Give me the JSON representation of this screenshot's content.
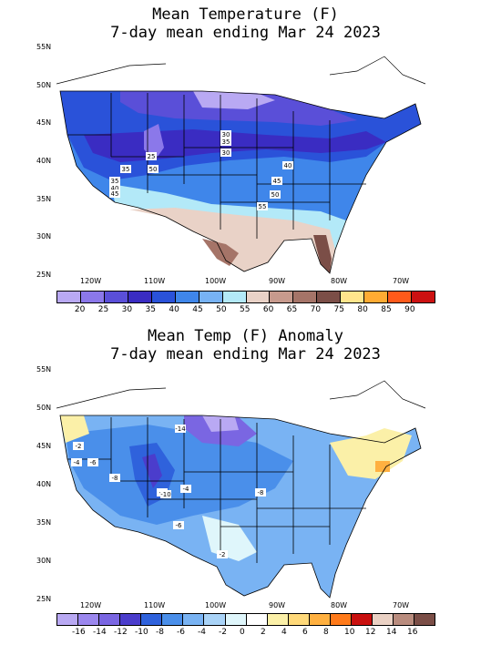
{
  "top": {
    "title_line1": "Mean Temperature (F)",
    "title_line2": "7-day mean ending Mar 24 2023",
    "lat_labels": [
      "55N",
      "50N",
      "45N",
      "40N",
      "35N",
      "30N",
      "25N"
    ],
    "lon_labels": [
      "120W",
      "110W",
      "100W",
      "90W",
      "80W",
      "70W"
    ],
    "contour_labels": [
      "25",
      "30",
      "35",
      "30",
      "35",
      "35",
      "40",
      "45",
      "40",
      "45",
      "50",
      "55",
      "50"
    ],
    "scale_labels": [
      "20",
      "25",
      "30",
      "35",
      "40",
      "45",
      "50",
      "55",
      "60",
      "65",
      "70",
      "75",
      "80",
      "85",
      "90"
    ],
    "scale_colors": [
      "#b9a9f3",
      "#8b78ea",
      "#5a4fd8",
      "#3a2cc2",
      "#2a52d9",
      "#3f86ea",
      "#77b2f4",
      "#b3e9f8",
      "#e9d2c7",
      "#c79a8d",
      "#a57468",
      "#7b4e47",
      "#ffe58c",
      "#ffab33",
      "#ff5a1a",
      "#cc1111"
    ]
  },
  "bottom": {
    "title_line1": "Mean Temp (F) Anomaly",
    "title_line2": "7-day mean ending Mar 24 2023",
    "lat_labels": [
      "55N",
      "50N",
      "45N",
      "40N",
      "35N",
      "30N",
      "25N"
    ],
    "lon_labels": [
      "120W",
      "110W",
      "100W",
      "90W",
      "80W",
      "70W"
    ],
    "contour_labels": [
      "-14",
      "-2",
      "-4",
      "-6",
      "-8",
      "-8",
      "-10",
      "-4",
      "-8",
      "-6",
      "-2"
    ],
    "scale_labels": [
      "-16",
      "-14",
      "-12",
      "-10",
      "-8",
      "-6",
      "-4",
      "-2",
      "0",
      "2",
      "4",
      "6",
      "8",
      "10",
      "12",
      "14",
      "16"
    ],
    "scale_colors": [
      "#b9a9f3",
      "#9b87ee",
      "#7a66e2",
      "#4b3dcc",
      "#2f62dc",
      "#4a8fea",
      "#79b3f3",
      "#a9d3f7",
      "#dff6fb",
      "#ffffff",
      "#fbf0a8",
      "#ffd97a",
      "#ffb040",
      "#ff7a1a",
      "#c9100f",
      "#ead1c4",
      "#b98c7e",
      "#7b4e47"
    ]
  }
}
